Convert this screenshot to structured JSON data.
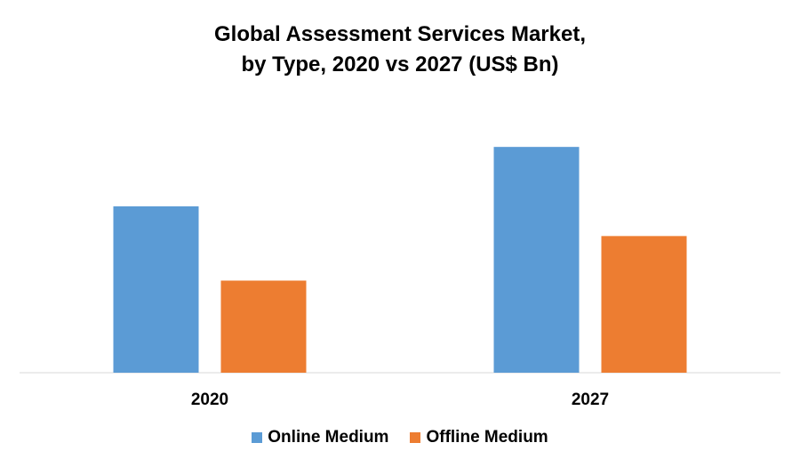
{
  "chart_data": {
    "type": "bar",
    "title": "Global Assessment Services Market,",
    "subtitle": "by Type, 2020 vs 2027 (US$ Bn)",
    "categories": [
      "2020",
      "2027"
    ],
    "series": [
      {
        "name": "Online Medium",
        "values": [
          5.6,
          7.6
        ],
        "color": "#5B9BD5"
      },
      {
        "name": "Offline Medium",
        "values": [
          3.1,
          4.6
        ],
        "color": "#ED7D31"
      }
    ],
    "ylim": [
      0,
      10
    ],
    "grid": false,
    "legend": "bottom-center"
  }
}
